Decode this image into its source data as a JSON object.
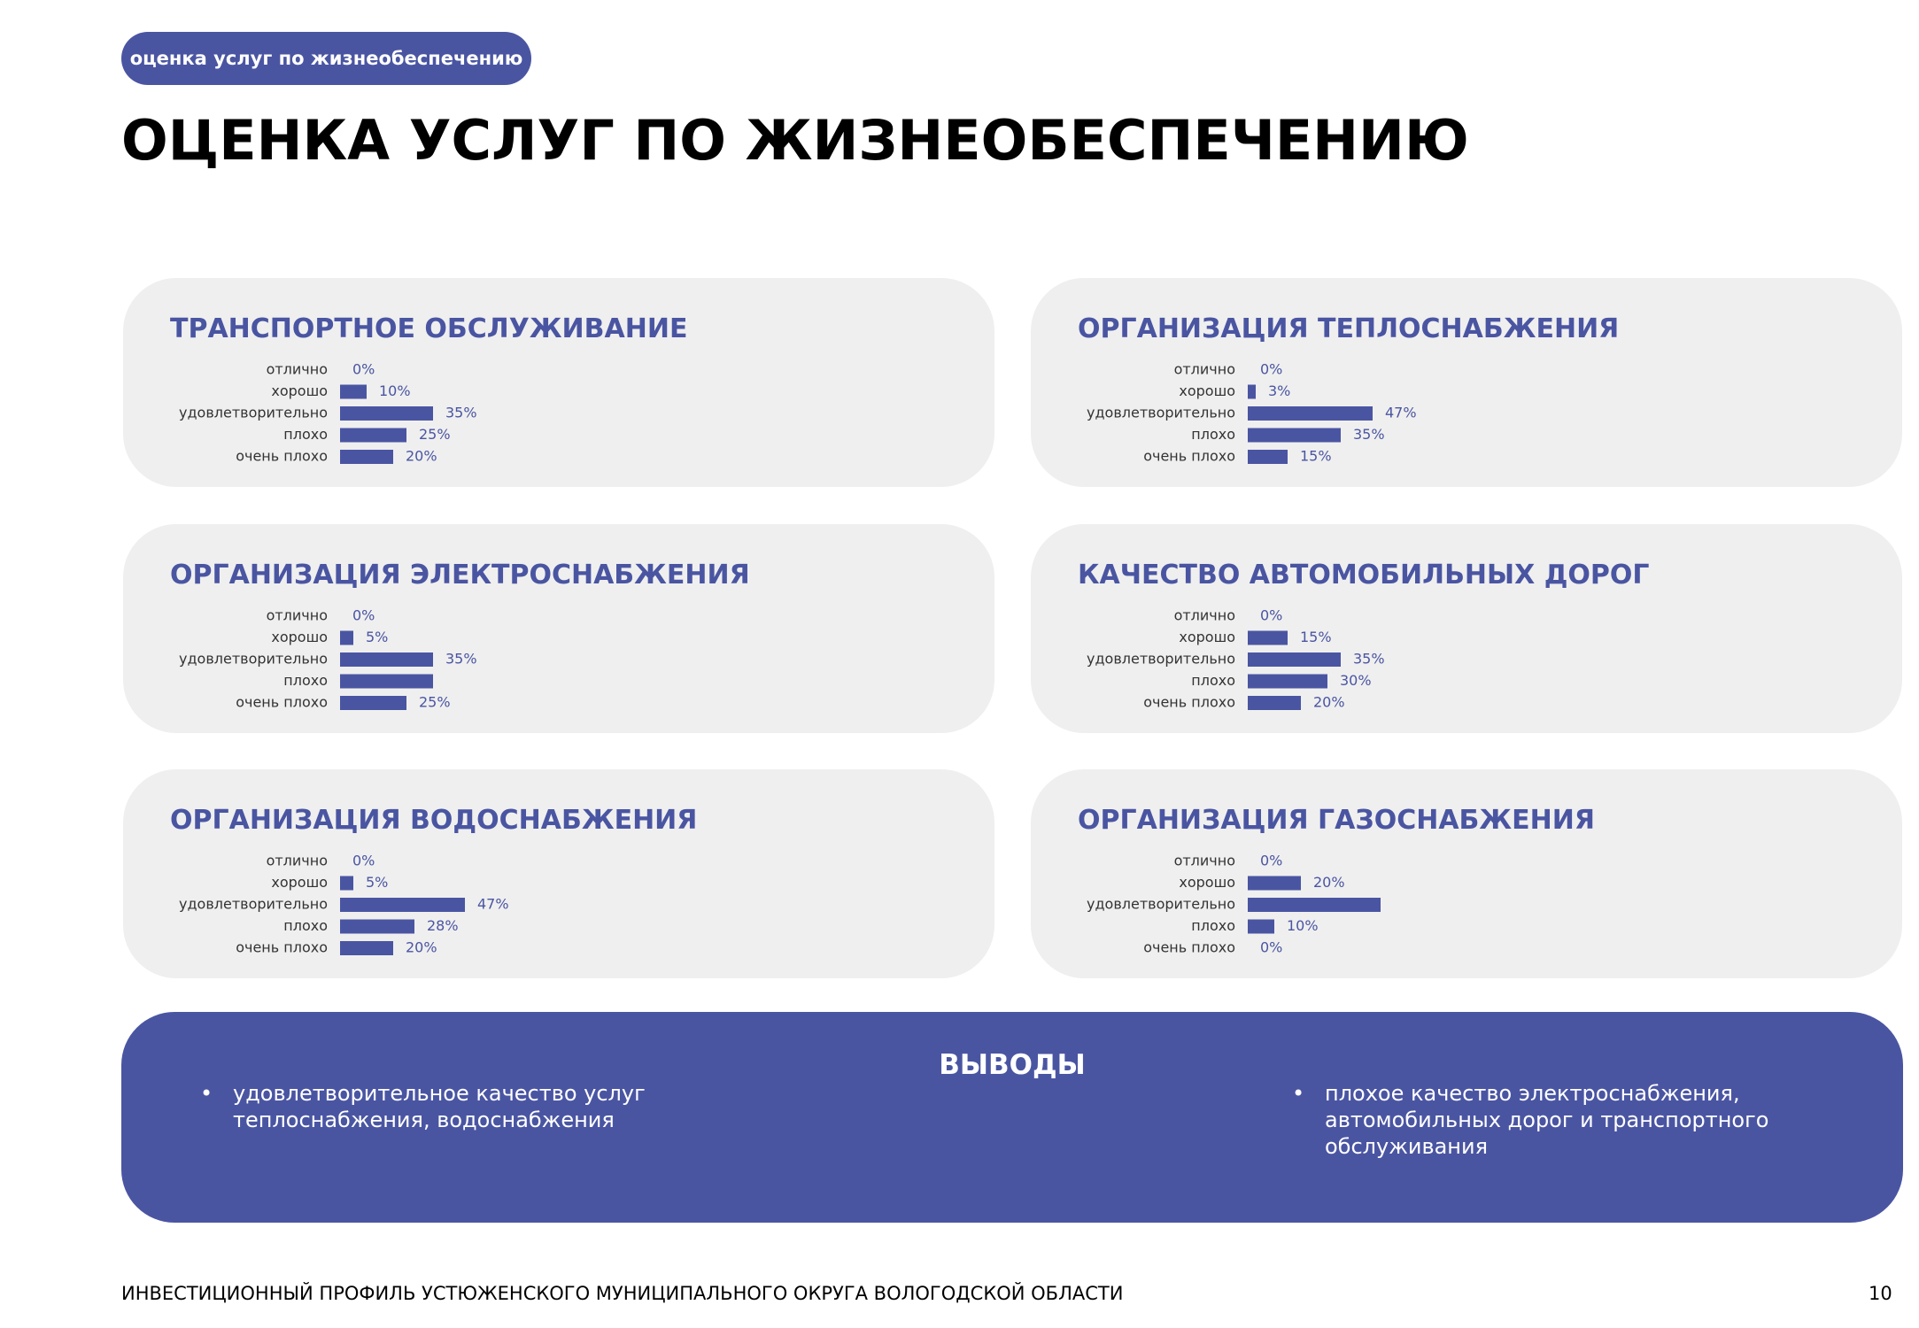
{
  "header": {
    "tag": "оценка услуг по жизнеобеспечению",
    "title": "ОЦЕНКА УСЛУГ ПО ЖИЗНЕОБЕСПЕЧЕНИЮ"
  },
  "chart_data": [
    {
      "type": "bar",
      "orientation": "horizontal",
      "title": "ТРАНСПОРТНОЕ ОБСЛУЖИВАНИЕ",
      "categories": [
        "отлично",
        "хорошо",
        "удовлетворительно",
        "плохо",
        "очень плохо"
      ],
      "values": [
        0,
        10,
        35,
        25,
        20
      ],
      "value_labels": [
        "0%",
        "10%",
        "35%",
        "25%",
        "20%"
      ],
      "xlim": [
        0,
        100
      ],
      "color": "#4a55a2"
    },
    {
      "type": "bar",
      "orientation": "horizontal",
      "title": "ОРГАНИЗАЦИЯ ТЕПЛОСНАБЖЕНИЯ",
      "categories": [
        "отлично",
        "хорошо",
        "удовлетворительно",
        "плохо",
        "очень плохо"
      ],
      "values": [
        0,
        3,
        47,
        35,
        15
      ],
      "value_labels": [
        "0%",
        "3%",
        "47%",
        "35%",
        "15%"
      ],
      "xlim": [
        0,
        100
      ],
      "color": "#4a55a2"
    },
    {
      "type": "bar",
      "orientation": "horizontal",
      "title": "ОРГАНИЗАЦИЯ ЭЛЕКТРОСНАБЖЕНИЯ",
      "categories": [
        "отлично",
        "хорошо",
        "удовлетворительно",
        "плохо",
        "очень плохо"
      ],
      "values": [
        0,
        5,
        35,
        35,
        25
      ],
      "value_labels": [
        "0%",
        "5%",
        "35%",
        null,
        "25%"
      ],
      "xlim": [
        0,
        100
      ],
      "color": "#4a55a2"
    },
    {
      "type": "bar",
      "orientation": "horizontal",
      "title": "КАЧЕСТВО АВТОМОБИЛЬНЫХ ДОРОГ",
      "categories": [
        "отлично",
        "хорошо",
        "удовлетворительно",
        "плохо",
        "очень плохо"
      ],
      "values": [
        0,
        15,
        35,
        30,
        20
      ],
      "value_labels": [
        "0%",
        "15%",
        "35%",
        "30%",
        "20%"
      ],
      "xlim": [
        0,
        100
      ],
      "color": "#4a55a2"
    },
    {
      "type": "bar",
      "orientation": "horizontal",
      "title": "ОРГАНИЗАЦИЯ ВОДОСНАБЖЕНИЯ",
      "categories": [
        "отлично",
        "хорошо",
        "удовлетворительно",
        "плохо",
        "очень плохо"
      ],
      "values": [
        0,
        5,
        47,
        28,
        20
      ],
      "value_labels": [
        "0%",
        "5%",
        "47%",
        "28%",
        "20%"
      ],
      "xlim": [
        0,
        100
      ],
      "color": "#4a55a2"
    },
    {
      "type": "bar",
      "orientation": "horizontal",
      "title": "ОРГАНИЗАЦИЯ ГАЗОСНАБЖЕНИЯ",
      "categories": [
        "отлично",
        "хорошо",
        "удовлетворительно",
        "плохо",
        "очень плохо"
      ],
      "values": [
        0,
        20,
        50,
        10,
        0
      ],
      "value_labels": [
        "0%",
        "20%",
        null,
        "10%",
        "0%"
      ],
      "xlim": [
        0,
        100
      ],
      "color": "#4a55a2"
    }
  ],
  "conclusions": {
    "title": "ВЫВОДЫ",
    "items": [
      "удовлетворительное качество услуг теплоснабжения, водоснабжения",
      "плохое качество электроснабжения, автомобильных дорог и транспортного обслуживания"
    ]
  },
  "footer": {
    "text": "ИНВЕСТИЦИОННЫЙ ПРОФИЛЬ УСТЮЖЕНСКОГО МУНИЦИПАЛЬНОГО ОКРУГА ВОЛОГОДСКОЙ ОБЛАСТИ",
    "page": "10"
  }
}
